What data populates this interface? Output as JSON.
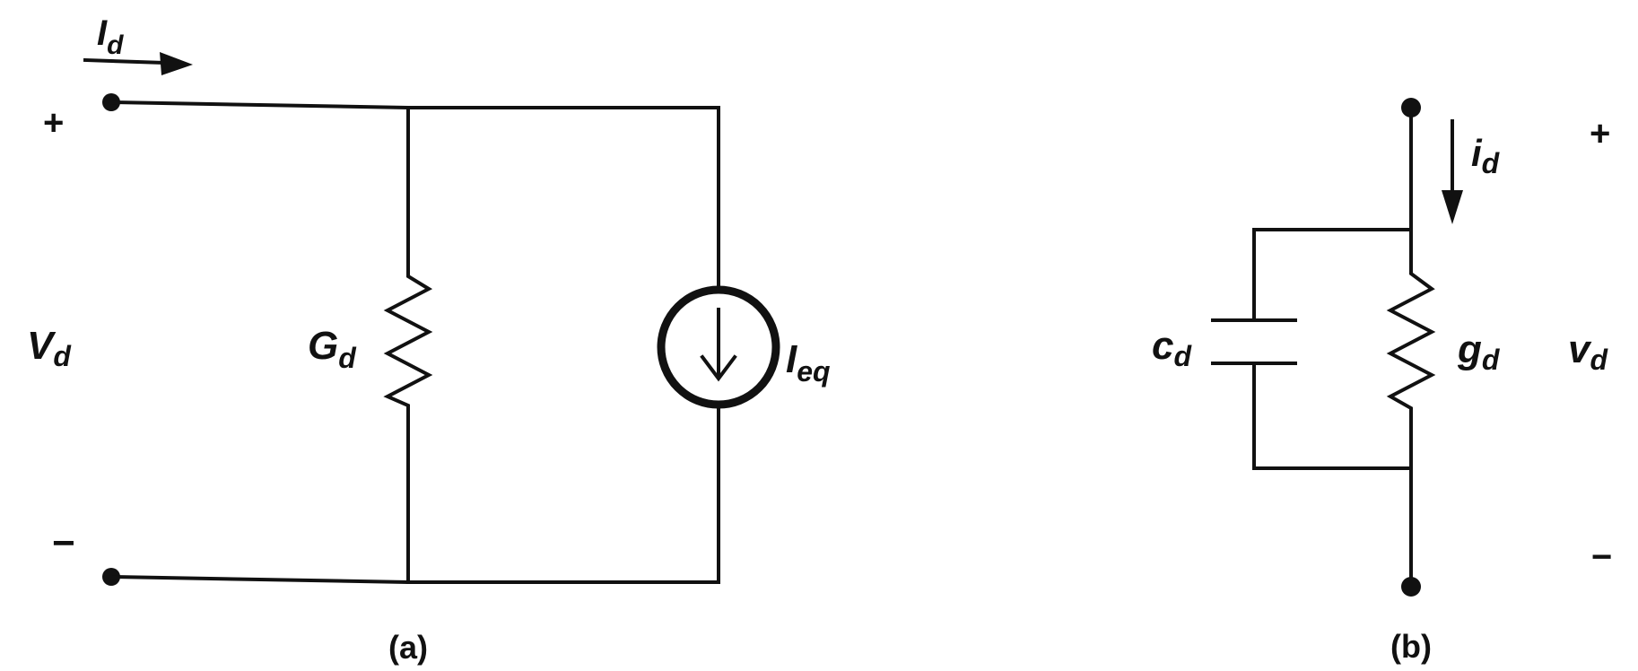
{
  "circuit_a": {
    "caption": "(a)",
    "current_label": {
      "main": "I",
      "sub": "d"
    },
    "voltage_label": {
      "main": "V",
      "sub": "d"
    },
    "plus": "+",
    "minus": "−",
    "resistor_label": {
      "main": "G",
      "sub": "d"
    },
    "source_label": {
      "main": "I",
      "sub": "eq"
    }
  },
  "circuit_b": {
    "caption": "(b)",
    "current_label": {
      "main": "i",
      "sub": "d"
    },
    "voltage_label": {
      "main": "v",
      "sub": "d"
    },
    "plus": "+",
    "minus": "−",
    "capacitor_label": {
      "main": "c",
      "sub": "d"
    },
    "resistor_label": {
      "main": "g",
      "sub": "d"
    }
  }
}
